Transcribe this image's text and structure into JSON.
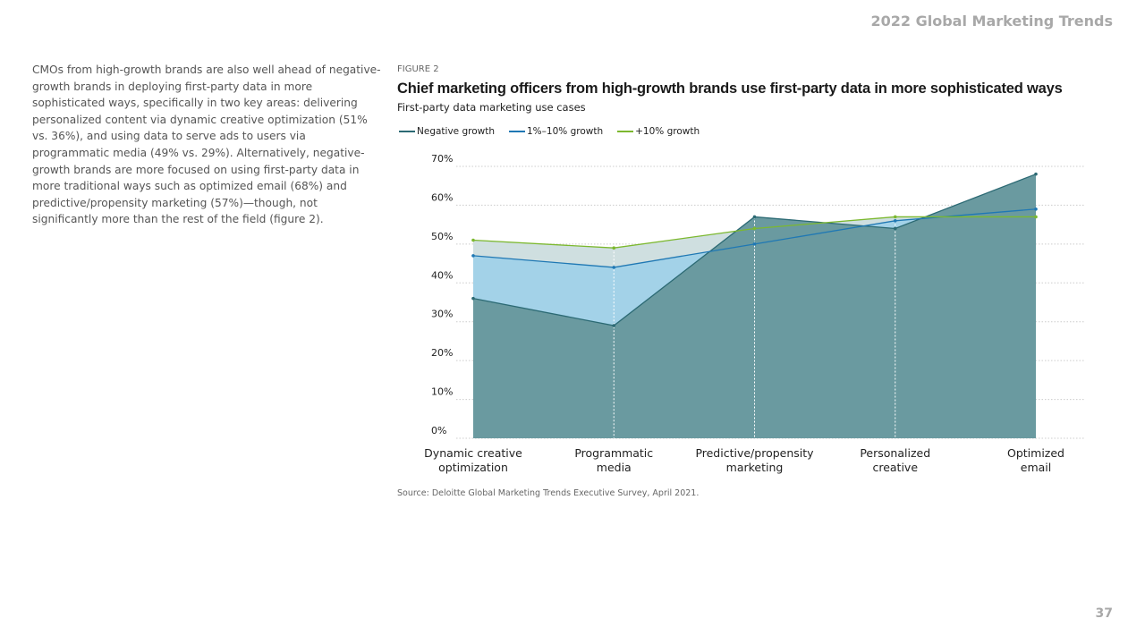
{
  "header": {
    "title": "2022 Global Marketing Trends"
  },
  "body_text": "CMOs from high-growth brands are also well ahead of negative-growth brands in deploying first-party data in more sophisticated ways, specifically in two key areas: delivering personalized content via dynamic creative optimization (51% vs. 36%), and using data to serve ads to users via programmatic media (49% vs. 29%). Alternatively, negative-growth brands are more focused on using first-party data in more traditional ways such as optimized email (68%) and predictive/propensity marketing (57%)—though, not significantly more than the rest of the field (figure 2).",
  "figure": {
    "label": "FIGURE 2",
    "source": "Source: Deloitte Global Marketing Trends Executive Survey, April 2021."
  },
  "page_number": "37",
  "colors": {
    "negative_fill": "#6a9aa0",
    "negative_line": "#2c6a74",
    "mid_fill": "#a3d2e8",
    "mid_line": "#1f78b4",
    "high_fill": "#cfdfe0",
    "high_line": "#7cb82f",
    "grid": "#cccccc",
    "vline": "#ffffff"
  },
  "chart_data": {
    "type": "area",
    "title": "Chief marketing officers from high-growth brands use first-party data in more sophisticated ways",
    "subtitle": "First-party data marketing use cases",
    "categories": [
      [
        "Dynamic creative",
        "optimization"
      ],
      [
        "Programmatic",
        "media"
      ],
      [
        "Predictive/propensity",
        "marketing"
      ],
      [
        "Personalized",
        "creative"
      ],
      [
        "Optimized",
        "email"
      ]
    ],
    "series": [
      {
        "name": "Negative growth",
        "values": [
          36,
          29,
          57,
          54,
          68
        ]
      },
      {
        "name": "1%–10% growth",
        "values": [
          47,
          44,
          50,
          56,
          59
        ]
      },
      {
        "name": "+10% growth",
        "values": [
          51,
          49,
          54,
          57,
          57
        ]
      }
    ],
    "yticks": [
      "0%",
      "10%",
      "20%",
      "30%",
      "40%",
      "50%",
      "60%",
      "70%"
    ],
    "ylim": [
      0,
      70
    ],
    "ylabel": "",
    "xlabel": "",
    "legend_position": "top-left",
    "grid": true
  }
}
